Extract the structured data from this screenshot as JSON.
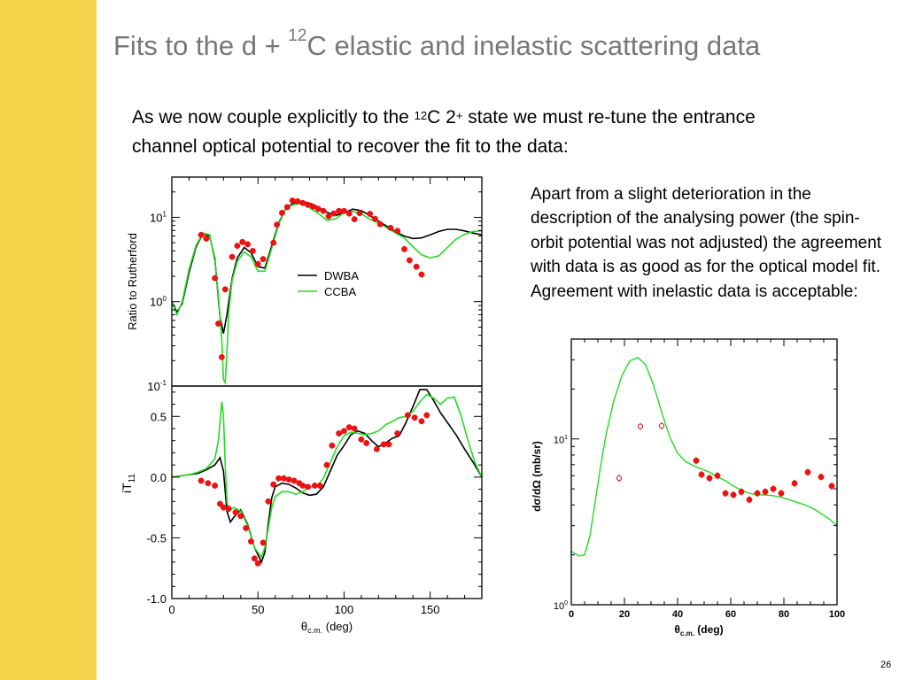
{
  "slide": {
    "title_pre": "Fits to the d + ",
    "title_sup": "12",
    "title_post": "C elastic and inelastic scattering data",
    "intro_1": "As we now couple explicitly to the ",
    "intro_sup1": "12",
    "intro_2": "C 2",
    "intro_sup2": "+",
    "intro_3": " state we must re-tune the entrance channel optical potential to recover the fit to the data:",
    "side_text": "Apart from a slight deterioration in the description of the analysing power (the spin-orbit potential was not adjusted) the agreement with data is as good as for the optical model fit. Agreement with inelastic data is acceptable:",
    "page_number": "26"
  },
  "colors": {
    "sidebar": "#f5d34a",
    "title": "#777777",
    "dwba": "#000000",
    "ccba": "#22dd22",
    "data_points": "#ee1111"
  },
  "chart_data": [
    {
      "type": "line",
      "panel": "elastic",
      "ylabel": "Ratio to Rutherford",
      "yscale": "log",
      "xlim": [
        0,
        180
      ],
      "ylim": [
        0.1,
        30
      ],
      "ytick_labels": [
        {
          "base": "10",
          "exp": "-1"
        },
        {
          "base": "10",
          "exp": "0"
        },
        {
          "base": "10",
          "exp": "1"
        }
      ],
      "legend": [
        "DWBA",
        "CCBA"
      ],
      "legend_position": "center",
      "series": [
        {
          "name": "DWBA",
          "x": [
            0,
            3,
            6,
            10,
            14,
            18,
            22,
            25,
            28,
            30,
            32,
            35,
            38,
            42,
            46,
            50,
            54,
            58,
            62,
            66,
            70,
            74,
            78,
            82,
            86,
            90,
            95,
            100,
            105,
            110,
            115,
            120,
            125,
            130,
            135,
            140,
            145,
            150,
            155,
            160,
            165,
            170,
            175,
            180
          ],
          "y": [
            1.0,
            0.75,
            0.95,
            2.2,
            4.4,
            6.4,
            6.0,
            3.2,
            0.65,
            0.42,
            0.7,
            1.9,
            3.3,
            4.4,
            3.8,
            2.6,
            2.5,
            4.6,
            8.5,
            12.5,
            14.5,
            15.5,
            15.0,
            14.2,
            12.8,
            11.5,
            10.5,
            11.3,
            12.5,
            12.0,
            10.5,
            9.0,
            7.8,
            6.7,
            6.0,
            5.6,
            5.7,
            6.2,
            6.8,
            7.2,
            7.2,
            6.9,
            6.5,
            6.2
          ]
        },
        {
          "name": "CCBA",
          "x": [
            0,
            3,
            6,
            10,
            14,
            18,
            22,
            25,
            27,
            29,
            30,
            31,
            32,
            33,
            35,
            38,
            42,
            46,
            50,
            54,
            58,
            62,
            66,
            70,
            74,
            78,
            82,
            86,
            90,
            95,
            100,
            105,
            110,
            115,
            120,
            125,
            130,
            135,
            140,
            145,
            150,
            155,
            160,
            165,
            170,
            175,
            180
          ],
          "y": [
            1.0,
            0.7,
            1.0,
            2.4,
            4.6,
            6.5,
            6.2,
            3.0,
            1.2,
            0.35,
            0.12,
            0.11,
            0.25,
            0.75,
            1.8,
            3.0,
            3.9,
            3.4,
            2.3,
            2.3,
            4.3,
            8.2,
            12.5,
            14.0,
            14.5,
            13.8,
            12.2,
            10.8,
            9.2,
            9.6,
            11.3,
            11.8,
            11.0,
            9.5,
            8.5,
            7.5,
            6.5,
            5.7,
            4.5,
            3.6,
            3.3,
            3.5,
            4.4,
            5.5,
            6.3,
            6.8,
            6.9
          ]
        }
      ],
      "data": {
        "name": "data",
        "x": [
          17,
          20,
          25,
          27,
          29,
          31,
          35,
          38,
          41,
          44,
          47,
          50,
          53,
          59,
          61,
          64,
          67,
          70,
          73,
          76,
          79,
          82,
          85,
          88,
          91,
          94,
          97,
          100,
          103,
          106,
          109,
          115,
          118,
          121,
          127,
          131,
          135,
          138,
          142,
          145
        ],
        "y": [
          6.2,
          5.6,
          1.9,
          0.55,
          0.22,
          1.4,
          3.4,
          4.6,
          5.1,
          4.8,
          4.0,
          2.8,
          3.2,
          5.0,
          8.2,
          11.3,
          13.2,
          15.8,
          15.5,
          14.8,
          14.1,
          13.4,
          12.6,
          11.9,
          10.3,
          11.1,
          11.9,
          11.9,
          11.1,
          9.5,
          11.2,
          11.0,
          9.6,
          8.3,
          7.5,
          6.9,
          4.2,
          3.1,
          2.6,
          2.1
        ]
      }
    },
    {
      "type": "line",
      "panel": "analysing-power",
      "xlabel_symbol": "θ",
      "xlabel_sub": "c.m.",
      "xlabel_unit": "(deg)",
      "ylabel_main": "iT",
      "ylabel_sub": "11",
      "xlim": [
        0,
        180
      ],
      "ylim": [
        -1.0,
        0.75
      ],
      "x_ticks": [
        "0",
        "50",
        "100",
        "150"
      ],
      "y_ticks": [
        "0.5",
        "0.0",
        "-0.5",
        "-1.0"
      ],
      "series": [
        {
          "name": "DWBA",
          "x": [
            0,
            5,
            10,
            15,
            20,
            25,
            28,
            30,
            32,
            34,
            36,
            40,
            44,
            48,
            52,
            54,
            56,
            58,
            60,
            64,
            68,
            72,
            76,
            80,
            84,
            88,
            92,
            96,
            100,
            104,
            108,
            112,
            116,
            120,
            124,
            128,
            132,
            136,
            140,
            144,
            148,
            152,
            156,
            160,
            165,
            170,
            175,
            180
          ],
          "y": [
            0.0,
            0.01,
            0.02,
            0.03,
            0.06,
            0.1,
            0.16,
            0.05,
            -0.28,
            -0.37,
            -0.33,
            -0.27,
            -0.39,
            -0.58,
            -0.7,
            -0.62,
            -0.38,
            -0.17,
            -0.08,
            -0.05,
            -0.06,
            -0.09,
            -0.13,
            -0.15,
            -0.14,
            -0.08,
            0.05,
            0.18,
            0.26,
            0.35,
            0.38,
            0.36,
            0.3,
            0.25,
            0.28,
            0.32,
            0.34,
            0.45,
            0.58,
            0.72,
            0.72,
            0.63,
            0.53,
            0.45,
            0.35,
            0.23,
            0.12,
            0.0
          ]
        },
        {
          "name": "CCBA",
          "x": [
            0,
            5,
            10,
            15,
            20,
            25,
            27,
            29,
            30,
            31,
            32,
            33,
            34,
            36,
            40,
            44,
            48,
            52,
            54,
            56,
            58,
            60,
            64,
            68,
            72,
            76,
            80,
            84,
            88,
            92,
            96,
            100,
            104,
            108,
            112,
            116,
            120,
            124,
            128,
            132,
            136,
            140,
            144,
            148,
            152,
            156,
            160,
            164,
            168,
            172,
            176,
            180
          ],
          "y": [
            0.0,
            0.01,
            0.02,
            0.04,
            0.07,
            0.15,
            0.3,
            0.62,
            0.5,
            0.1,
            -0.2,
            -0.28,
            -0.27,
            -0.25,
            -0.28,
            -0.4,
            -0.58,
            -0.66,
            -0.58,
            -0.42,
            -0.25,
            -0.16,
            -0.12,
            -0.12,
            -0.14,
            -0.12,
            -0.08,
            -0.08,
            -0.01,
            0.12,
            0.25,
            0.34,
            0.37,
            0.36,
            0.35,
            0.36,
            0.38,
            0.43,
            0.46,
            0.49,
            0.5,
            0.54,
            0.62,
            0.68,
            0.65,
            0.6,
            0.65,
            0.66,
            0.5,
            0.3,
            0.12,
            0.0
          ]
        }
      ],
      "data": {
        "name": "data",
        "x": [
          17,
          21,
          25,
          28,
          30,
          33,
          37,
          40,
          43,
          46,
          48,
          50,
          53,
          56,
          59,
          62,
          65,
          68,
          71,
          74,
          76,
          79,
          83,
          86,
          90,
          93,
          97,
          100,
          103,
          106,
          110,
          113,
          119,
          123,
          126,
          131,
          137,
          141,
          145,
          148
        ],
        "y": [
          -0.03,
          -0.05,
          -0.07,
          -0.22,
          -0.25,
          -0.26,
          -0.29,
          -0.32,
          -0.42,
          -0.53,
          -0.67,
          -0.71,
          -0.54,
          -0.2,
          -0.06,
          -0.01,
          -0.01,
          -0.02,
          -0.03,
          -0.05,
          -0.07,
          -0.08,
          -0.07,
          -0.07,
          0.1,
          0.26,
          0.36,
          0.38,
          0.41,
          0.4,
          0.31,
          0.28,
          0.23,
          0.27,
          0.27,
          0.36,
          0.51,
          0.49,
          0.46,
          0.51
        ]
      }
    },
    {
      "type": "line",
      "panel": "inelastic",
      "xlabel_symbol": "θ",
      "xlabel_sub": "c.m.",
      "xlabel_unit": "(deg)",
      "ylabel": "dσ/dΩ (mb/sr)",
      "yscale": "log",
      "xlim": [
        0,
        100
      ],
      "ylim": [
        1,
        40
      ],
      "x_ticks": [
        "0",
        "20",
        "40",
        "60",
        "80",
        "100"
      ],
      "ytick_labels": [
        {
          "base": "10",
          "exp": "0"
        },
        {
          "base": "10",
          "exp": "1"
        }
      ],
      "series": [
        {
          "name": "CCBA",
          "x": [
            0,
            3,
            5,
            7,
            9,
            11,
            13,
            16,
            19,
            22,
            25,
            28,
            31,
            34,
            37,
            40,
            43,
            46,
            49,
            52,
            55,
            58,
            61,
            64,
            67,
            70,
            73,
            76,
            79,
            82,
            85,
            88,
            91,
            94,
            97,
            100
          ],
          "y": [
            2.1,
            1.97,
            2.0,
            2.6,
            4.2,
            6.8,
            10.5,
            17,
            24,
            29.5,
            31,
            28,
            21,
            14.5,
            10.3,
            8.2,
            7.3,
            6.9,
            6.6,
            6.3,
            5.9,
            5.6,
            5.2,
            4.9,
            4.7,
            4.6,
            4.6,
            4.55,
            4.45,
            4.3,
            4.15,
            4.0,
            3.8,
            3.55,
            3.3,
            3.0
          ]
        }
      ],
      "data_open": {
        "name": "open-data",
        "x": [
          18,
          26,
          34
        ],
        "y": [
          5.8,
          11.9,
          12.0
        ]
      },
      "data": {
        "name": "data",
        "x": [
          47,
          49,
          52,
          55,
          58,
          61,
          64,
          67,
          70,
          73,
          76,
          79,
          84,
          89,
          94,
          98
        ],
        "y": [
          7.4,
          6.1,
          5.8,
          6.0,
          4.7,
          4.6,
          4.8,
          4.3,
          4.7,
          4.8,
          5.0,
          4.7,
          5.4,
          6.3,
          5.9,
          5.2
        ]
      }
    }
  ]
}
